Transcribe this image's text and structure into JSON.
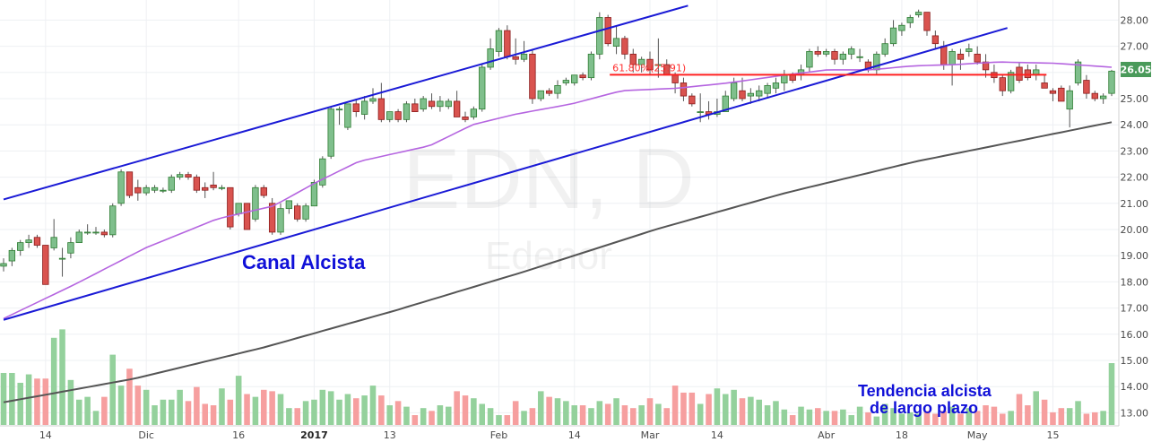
{
  "chart_data": {
    "type": "candlestick",
    "watermark": {
      "symbol": "EDN, D",
      "company": "Edenor"
    },
    "last_price_label": "26.05",
    "colors": {
      "up": "#4caf50",
      "down": "#e53935",
      "up_fill": "#7fbf8c",
      "down_fill": "#d9534f",
      "vol_up": "#8ecf97",
      "vol_down": "#f59a9a",
      "sma_short": "#b565e0",
      "sma_long": "#555555",
      "channel": "#1a1ad6",
      "fib": "#ff2020"
    },
    "y_axis": {
      "min": 12.5,
      "max": 28.3,
      "ticks": [
        "13.00",
        "14.00",
        "15.00",
        "16.00",
        "17.00",
        "18.00",
        "19.00",
        "20.00",
        "21.00",
        "22.00",
        "23.00",
        "24.00",
        "25.00",
        "26.00",
        "27.00",
        "28.00"
      ]
    },
    "x_axis": {
      "labels": [
        {
          "text": "14",
          "index": 4
        },
        {
          "text": "Dic",
          "index": 13
        },
        {
          "text": "16",
          "index": 22
        },
        {
          "text": "2017",
          "index": 29,
          "bold": true
        },
        {
          "text": "13",
          "index": 36
        },
        {
          "text": "Feb",
          "index": 46
        },
        {
          "text": "14",
          "index": 53
        },
        {
          "text": "Mar",
          "index": 60
        },
        {
          "text": "14",
          "index": 67
        },
        {
          "text": "Abr",
          "index": 77
        },
        {
          "text": "18",
          "index": 84
        },
        {
          "text": "May",
          "index": 91
        },
        {
          "text": "15",
          "index": 98
        }
      ]
    },
    "candles": [
      [
        18.6,
        18.9,
        18.4,
        18.7
      ],
      [
        18.8,
        19.3,
        18.6,
        19.2
      ],
      [
        19.2,
        19.6,
        19.0,
        19.5
      ],
      [
        19.5,
        19.8,
        19.3,
        19.6
      ],
      [
        19.7,
        19.8,
        19.3,
        19.4
      ],
      [
        19.4,
        19.4,
        17.9,
        17.9
      ],
      [
        19.3,
        20.4,
        19.2,
        19.7
      ],
      [
        18.9,
        19.3,
        18.2,
        18.9
      ],
      [
        19.1,
        19.7,
        18.9,
        19.5
      ],
      [
        19.5,
        20.0,
        19.5,
        19.9
      ],
      [
        19.9,
        20.2,
        19.8,
        19.9
      ],
      [
        19.9,
        20.1,
        19.8,
        19.9
      ],
      [
        19.9,
        20.0,
        19.7,
        19.8
      ],
      [
        19.8,
        21.0,
        19.7,
        20.9
      ],
      [
        21.0,
        22.3,
        20.9,
        22.2
      ],
      [
        22.2,
        22.2,
        21.2,
        21.3
      ],
      [
        21.6,
        21.9,
        21.1,
        21.4
      ],
      [
        21.4,
        21.7,
        21.3,
        21.6
      ],
      [
        21.5,
        21.7,
        21.4,
        21.6
      ],
      [
        21.5,
        21.6,
        21.4,
        21.5
      ],
      [
        21.5,
        22.1,
        21.4,
        22.0
      ],
      [
        22.0,
        22.2,
        21.9,
        22.1
      ],
      [
        22.1,
        22.2,
        21.9,
        22.0
      ],
      [
        22.0,
        22.1,
        21.4,
        21.5
      ],
      [
        21.6,
        21.8,
        21.2,
        21.5
      ],
      [
        21.7,
        22.2,
        21.5,
        21.6
      ],
      [
        21.6,
        21.7,
        21.5,
        21.6
      ],
      [
        21.6,
        21.6,
        20.0,
        20.1
      ],
      [
        20.6,
        21.0,
        20.5,
        21.0
      ],
      [
        21.0,
        21.0,
        20.0,
        20.0
      ],
      [
        20.4,
        21.7,
        20.3,
        21.6
      ],
      [
        21.6,
        21.7,
        21.2,
        21.3
      ],
      [
        21.0,
        21.2,
        19.8,
        19.9
      ],
      [
        19.9,
        21.0,
        19.8,
        20.8
      ],
      [
        20.8,
        21.1,
        20.6,
        21.1
      ],
      [
        20.9,
        21.0,
        20.3,
        20.4
      ],
      [
        20.4,
        21.0,
        20.3,
        20.9
      ],
      [
        20.9,
        21.9,
        20.9,
        21.8
      ],
      [
        21.7,
        22.8,
        21.6,
        22.7
      ],
      [
        22.8,
        24.7,
        22.7,
        24.6
      ],
      [
        24.6,
        24.7,
        24.0,
        24.6
      ],
      [
        23.9,
        24.8,
        23.8,
        24.8
      ]
    ],
    "candles_b": [
      [
        24.8,
        25.0,
        24.3,
        24.5
      ],
      [
        24.4,
        25.1,
        24.2,
        24.9
      ],
      [
        24.9,
        25.4,
        24.8,
        25.0
      ],
      [
        25.0,
        25.6,
        24.1,
        24.2
      ],
      [
        24.2,
        24.5,
        24.1,
        24.5
      ],
      [
        24.5,
        24.6,
        24.1,
        24.2
      ],
      [
        24.2,
        24.9,
        24.1,
        24.8
      ],
      [
        24.8,
        25.0,
        24.5,
        24.5
      ],
      [
        24.6,
        25.1,
        24.5,
        25.0
      ],
      [
        24.9,
        25.2,
        24.6,
        24.7
      ],
      [
        24.7,
        25.1,
        24.5,
        24.9
      ],
      [
        24.7,
        25.0,
        24.6,
        24.9
      ],
      [
        24.9,
        25.3,
        24.3,
        24.3
      ],
      [
        24.3,
        24.5,
        24.1,
        24.2
      ],
      [
        24.3,
        24.7,
        24.2,
        24.6
      ],
      [
        24.6,
        26.3,
        24.5,
        26.2
      ],
      [
        26.2,
        27.3,
        26.1,
        26.9
      ],
      [
        26.8,
        27.7,
        26.6,
        27.6
      ],
      [
        27.6,
        27.8,
        26.5,
        26.6
      ],
      [
        26.6,
        27.3,
        26.3,
        26.5
      ],
      [
        26.5,
        27.2,
        26.4,
        26.7
      ],
      [
        26.7,
        26.9,
        24.8,
        25.0
      ],
      [
        25.0,
        25.3,
        24.9,
        25.3
      ],
      [
        25.3,
        25.4,
        25.1,
        25.2
      ],
      [
        25.2,
        25.7,
        25.0,
        25.5
      ],
      [
        25.6,
        25.8,
        25.5,
        25.7
      ],
      [
        25.6,
        25.9,
        25.5,
        25.9
      ],
      [
        25.9,
        26.0,
        25.7,
        25.8
      ],
      [
        25.8,
        26.8,
        25.7,
        26.7
      ],
      [
        26.7,
        28.3,
        26.5,
        28.1
      ],
      [
        28.1,
        28.2,
        27.0,
        27.1
      ],
      [
        27.0,
        27.8,
        26.7,
        27.3
      ],
      [
        27.3,
        27.4,
        26.5,
        26.7
      ],
      [
        26.7,
        26.9,
        26.0,
        26.3
      ],
      [
        26.3,
        26.6,
        26.0,
        26.5
      ],
      [
        26.5,
        26.8,
        25.9,
        26.1
      ],
      [
        26.3,
        27.3,
        25.8,
        26.3
      ],
      [
        26.3,
        26.5,
        25.9,
        25.9
      ]
    ],
    "candles_c": [
      [
        25.9,
        26.0,
        25.2,
        25.6
      ],
      [
        25.6,
        25.8,
        24.9,
        25.1
      ],
      [
        25.1,
        25.2,
        24.7,
        24.8
      ],
      [
        24.5,
        25.2,
        24.1,
        24.5
      ],
      [
        24.5,
        24.9,
        24.2,
        24.4
      ],
      [
        24.4,
        25.0,
        24.3,
        24.5
      ],
      [
        24.5,
        25.3,
        24.5,
        25.1
      ],
      [
        25.0,
        25.8,
        24.9,
        25.6
      ],
      [
        25.3,
        25.8,
        24.9,
        25.0
      ],
      [
        25.1,
        25.4,
        24.8,
        25.2
      ],
      [
        25.1,
        25.5,
        24.9,
        25.3
      ],
      [
        25.2,
        25.6,
        25.0,
        25.5
      ],
      [
        25.4,
        25.8,
        25.2,
        25.6
      ],
      [
        25.6,
        26.1,
        25.3,
        25.9
      ],
      [
        25.9,
        26.0,
        25.6,
        25.7
      ],
      [
        25.9,
        26.3,
        25.7,
        26.1
      ],
      [
        26.2,
        26.9,
        26.0,
        26.8
      ],
      [
        26.8,
        27.0,
        26.6,
        26.7
      ],
      [
        26.7,
        26.9,
        26.6,
        26.8
      ],
      [
        26.8,
        26.9,
        26.3,
        26.5
      ],
      [
        26.5,
        26.8,
        26.3,
        26.7
      ],
      [
        26.7,
        27.0,
        26.5,
        26.9
      ],
      [
        26.6,
        26.9,
        26.4,
        26.6
      ],
      [
        26.4,
        26.5,
        26.0,
        26.1
      ],
      [
        26.1,
        26.8,
        25.9,
        26.7
      ],
      [
        26.7,
        27.3,
        26.6,
        27.1
      ],
      [
        27.1,
        28.0,
        27.0,
        27.7
      ],
      [
        27.6,
        27.9,
        27.4,
        27.8
      ],
      [
        27.9,
        28.2,
        27.7,
        28.1
      ],
      [
        28.2,
        28.4,
        28.1,
        28.3
      ],
      [
        28.3,
        28.3,
        27.4,
        27.6
      ],
      [
        27.4,
        27.6,
        26.9,
        27.1
      ],
      [
        27.0,
        27.2,
        26.1,
        26.3
      ],
      [
        26.3,
        26.9,
        25.5,
        26.8
      ],
      [
        26.7,
        26.9,
        26.1,
        26.5
      ],
      [
        26.8,
        27.1,
        26.6,
        26.9
      ],
      [
        26.7,
        27.0,
        26.3,
        26.4
      ],
      [
        26.4,
        26.7,
        25.8,
        26.1
      ],
      [
        26.0,
        26.3,
        25.6,
        25.8
      ],
      [
        25.8,
        25.9,
        25.1,
        25.3
      ],
      [
        25.3,
        26.1,
        25.2,
        26.0
      ],
      [
        26.2,
        26.4,
        25.6,
        25.7
      ],
      [
        26.1,
        26.3,
        25.7,
        25.8
      ],
      [
        25.9,
        26.3,
        25.7,
        26.1
      ],
      [
        25.6,
        25.9,
        25.4,
        25.4
      ],
      [
        25.3,
        25.4,
        24.9,
        25.2
      ],
      [
        25.4,
        25.5,
        24.9,
        24.9
      ],
      [
        24.6,
        25.5,
        23.9,
        25.3
      ],
      [
        25.6,
        26.5,
        25.5,
        26.4
      ],
      [
        25.7,
        25.9,
        25.0,
        25.2
      ],
      [
        25.2,
        25.3,
        24.9,
        25.0
      ],
      [
        25.0,
        25.2,
        24.8,
        25.1
      ],
      [
        25.2,
        26.1,
        25.1,
        26.05
      ]
    ],
    "volume": [
      0.37,
      0.37,
      0.3,
      0.36,
      0.33,
      0.33,
      0.62,
      0.68,
      0.32,
      0.18,
      0.2,
      0.1,
      0.2,
      0.5,
      0.28,
      0.4,
      0.28,
      0.25,
      0.14,
      0.18,
      0.18,
      0.25,
      0.17,
      0.27,
      0.15,
      0.14,
      0.26,
      0.18,
      0.35,
      0.22,
      0.2,
      0.25,
      0.24,
      0.22,
      0.12,
      0.12,
      0.17,
      0.18,
      0.25,
      0.24,
      0.18,
      0.22,
      0.19,
      0.21,
      0.28,
      0.21,
      0.14,
      0.17,
      0.13,
      0.07,
      0.12,
      0.1,
      0.14,
      0.13,
      0.24,
      0.21,
      0.19,
      0.15,
      0.12,
      0.07,
      0.07,
      0.17,
      0.1,
      0.12,
      0.24,
      0.2,
      0.19,
      0.17,
      0.14,
      0.14,
      0.12,
      0.17,
      0.15,
      0.19,
      0.14,
      0.12,
      0.14,
      0.19,
      0.15,
      0.12,
      0.28,
      0.23,
      0.23,
      0.15,
      0.22,
      0.26,
      0.22,
      0.25,
      0.19,
      0.2,
      0.18,
      0.14,
      0.17,
      0.11,
      0.07,
      0.13,
      0.11,
      0.12,
      0.1,
      0.1,
      0.11,
      0.07,
      0.13,
      0.09,
      0.06,
      0.15,
      0.12,
      0.08,
      0.09,
      0.08,
      0.1,
      0.08,
      0.1,
      0.13,
      0.08,
      0.12,
      0.1,
      0.14,
      0.13,
      0.08,
      0.1,
      0.22,
      0.14,
      0.24,
      0.18,
      0.09,
      0.12,
      0.12,
      0.17,
      0.08,
      0.09,
      0.1,
      0.44
    ],
    "channel": {
      "upper": [
        [
          0,
          21.15
        ],
        [
          105,
          28.55
        ]
      ],
      "lower": [
        [
          0,
          16.55
        ],
        [
          154,
          27.7
        ]
      ]
    },
    "fib_line": {
      "label": "61.80%(25.91)",
      "value": 25.91,
      "from_index": 93,
      "to_index": 160
    },
    "sma_short_anchors": [
      [
        0,
        16.6
      ],
      [
        10,
        17.9
      ],
      [
        20,
        19.3
      ],
      [
        30,
        20.4
      ],
      [
        38,
        20.9
      ],
      [
        44,
        21.8
      ],
      [
        50,
        22.6
      ],
      [
        60,
        23.2
      ],
      [
        66,
        24.0
      ],
      [
        72,
        24.4
      ],
      [
        80,
        24.8
      ],
      [
        87,
        25.3
      ],
      [
        95,
        25.4
      ],
      [
        102,
        25.6
      ],
      [
        110,
        25.9
      ],
      [
        116,
        26.1
      ],
      [
        122,
        26.1
      ],
      [
        128,
        26.25
      ],
      [
        134,
        26.3
      ],
      [
        140,
        26.4
      ],
      [
        148,
        26.35
      ],
      [
        156,
        26.2
      ]
    ],
    "sma_long_anchors": [
      [
        0,
        13.4
      ],
      [
        20,
        14.3
      ],
      [
        40,
        15.5
      ],
      [
        60,
        16.9
      ],
      [
        80,
        18.4
      ],
      [
        100,
        20.0
      ],
      [
        120,
        21.4
      ],
      [
        140,
        22.6
      ],
      [
        156,
        23.4
      ],
      [
        170,
        24.1
      ]
    ],
    "annotations": [
      {
        "text": "Canal Alcista",
        "size": 22
      },
      {
        "text": "Tendencia alcista",
        "size": 18
      },
      {
        "text": "de largo plazo",
        "size": 18
      }
    ]
  }
}
